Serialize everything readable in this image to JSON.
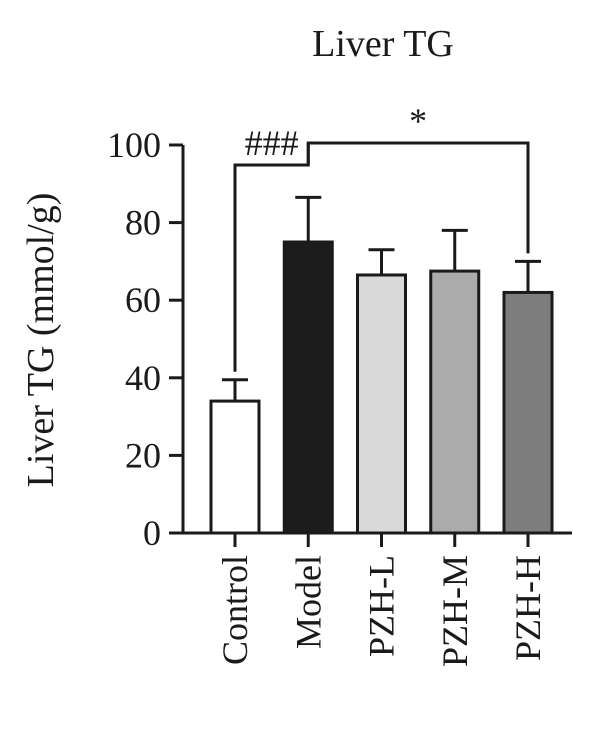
{
  "chart_data": {
    "type": "bar",
    "title": "Liver TG",
    "xlabel": "",
    "ylabel": "Liver TG (mmol/g)",
    "ylim": [
      0,
      100
    ],
    "yticks": [
      0,
      20,
      40,
      60,
      80,
      100
    ],
    "categories": [
      "Control",
      "Model",
      "PZH-L",
      "PZH-M",
      "PZH-H"
    ],
    "values": [
      34,
      75,
      66.5,
      67.5,
      62
    ],
    "errors": [
      5.5,
      11.5,
      6.5,
      10.5,
      8
    ],
    "bar_colors": [
      "#ffffff",
      "#1c1c1c",
      "#d9d9d9",
      "#ababab",
      "#7d7d7d"
    ],
    "grid": false,
    "annotations": [
      {
        "text": "###",
        "from": "Control",
        "to": "Model"
      },
      {
        "text": "*",
        "from": "Model",
        "to": "PZH-H"
      }
    ]
  }
}
